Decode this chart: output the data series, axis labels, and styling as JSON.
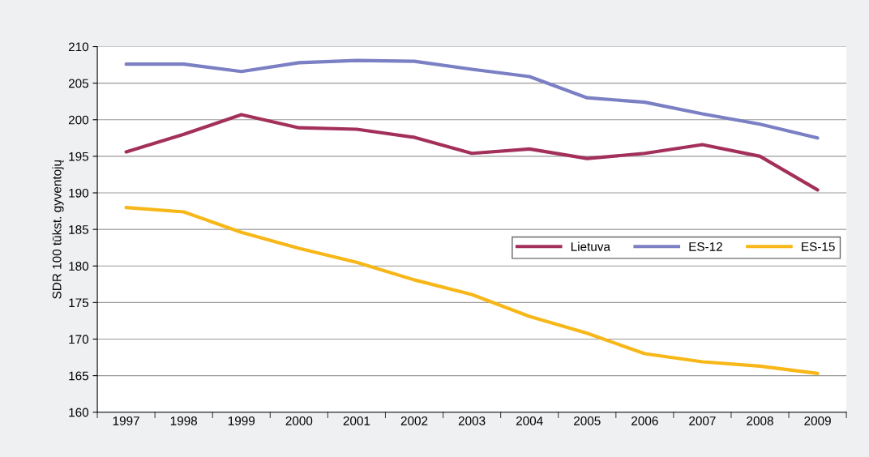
{
  "chart_data": {
    "type": "line",
    "ylabel": "SDR 100 tūkst. gyventojų",
    "categories": [
      "1997",
      "1998",
      "1999",
      "2000",
      "2001",
      "2002",
      "2003",
      "2004",
      "2005",
      "2006",
      "2007",
      "2008",
      "2009"
    ],
    "series": [
      {
        "name": "Lietuva",
        "color": "#a3305a",
        "values": [
          195.6,
          198.0,
          200.7,
          198.9,
          198.7,
          197.6,
          195.4,
          196.0,
          194.7,
          195.4,
          196.6,
          195.0,
          190.4
        ]
      },
      {
        "name": "ES-12",
        "color": "#7b7fc4",
        "values": [
          207.6,
          207.6,
          206.6,
          207.8,
          208.1,
          208.0,
          206.9,
          205.9,
          203.0,
          202.4,
          200.8,
          199.4,
          197.5
        ]
      },
      {
        "name": "ES-15",
        "color": "#f7b718",
        "values": [
          188.0,
          187.4,
          184.6,
          182.4,
          180.5,
          178.1,
          176.1,
          173.1,
          170.8,
          168.0,
          166.9,
          166.3,
          165.3
        ]
      }
    ],
    "ylim": [
      160,
      210
    ],
    "yticks": [
      160,
      165,
      170,
      175,
      180,
      185,
      190,
      195,
      200,
      205,
      210
    ],
    "grid": "y",
    "legend": "right",
    "marker": "none",
    "line_style": "solid"
  }
}
